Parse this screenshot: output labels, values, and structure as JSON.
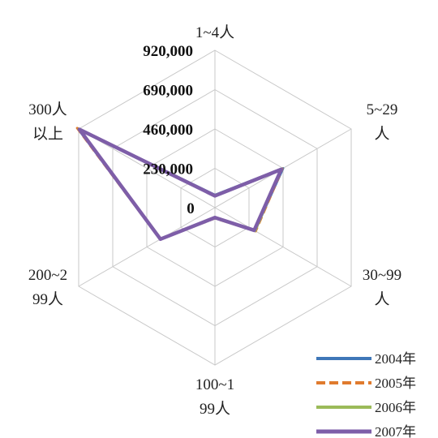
{
  "chart_data": {
    "type": "radar",
    "title": "",
    "categories": [
      [
        "1~4人"
      ],
      [
        "5~29",
        "人"
      ],
      [
        "30~99",
        "人"
      ],
      [
        "100~1",
        "99人"
      ],
      [
        "200~2",
        "99人"
      ],
      [
        "300人",
        "以上"
      ]
    ],
    "rmax": 920000,
    "ticks": [
      0,
      230000,
      460000,
      690000,
      920000
    ],
    "tick_labels": [
      "0",
      "230,000",
      "460,000",
      "690,000",
      "920,000"
    ],
    "series": [
      {
        "name": "2004年",
        "color": "#3f77b8",
        "style": "solid",
        "values": [
          74000,
          460000,
          270000,
          60000,
          370000,
          925000
        ]
      },
      {
        "name": "2005年",
        "color": "#e07b2e",
        "style": "dashed",
        "values": [
          70000,
          455000,
          275000,
          62000,
          370000,
          930000
        ]
      },
      {
        "name": "2006年",
        "color": "#9bbb59",
        "style": "solid",
        "values": [
          72000,
          450000,
          272000,
          61000,
          365000,
          920000
        ]
      },
      {
        "name": "2007年",
        "color": "#7e5ea8",
        "style": "solid-thick",
        "values": [
          69000,
          448000,
          265000,
          58000,
          368000,
          915000
        ]
      }
    ],
    "legend_position": "bottom-right",
    "grid": true
  }
}
